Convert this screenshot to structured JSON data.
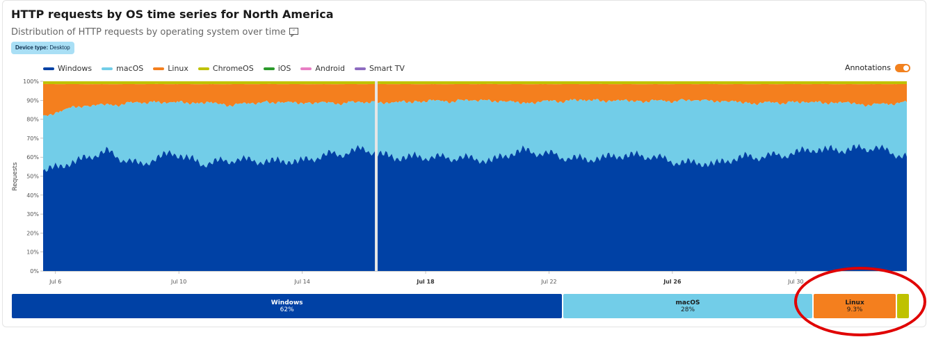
{
  "header": {
    "title": "HTTP requests by OS time series for North America",
    "subtitle": "Distribution of HTTP requests by operating system over time",
    "filter_badge": {
      "key": "Device type:",
      "value": "Desktop"
    }
  },
  "annotations": {
    "label": "Annotations",
    "enabled": true
  },
  "colors": {
    "Windows": "#0041a5",
    "macOS": "#72cde8",
    "Linux": "#f47f1e",
    "ChromeOS": "#bfc200",
    "iOS": "#2b9a2b",
    "Android": "#e87ec4",
    "Smart TV": "#8d6bc0"
  },
  "chart_data": {
    "type": "area",
    "stacked": true,
    "normalized": true,
    "title": "HTTP requests by OS time series for North America",
    "ylabel": "Requests",
    "ylim": [
      0,
      100
    ],
    "yticks": [
      "0%",
      "10%",
      "20%",
      "30%",
      "40%",
      "50%",
      "60%",
      "70%",
      "80%",
      "90%",
      "100%"
    ],
    "xticks": [
      {
        "label": "Jul 6",
        "day": 6,
        "bold": false
      },
      {
        "label": "Jul 10",
        "day": 10,
        "bold": false
      },
      {
        "label": "Jul 14",
        "day": 14,
        "bold": false
      },
      {
        "label": "Jul 18",
        "day": 18,
        "bold": true
      },
      {
        "label": "Jul 22",
        "day": 22,
        "bold": false
      },
      {
        "label": "Jul 26",
        "day": 26,
        "bold": true
      },
      {
        "label": "Jul 30",
        "day": 30,
        "bold": false
      }
    ],
    "x_range_days": [
      5.6,
      33.6
    ],
    "gap_day": 16.4,
    "legend": [
      "Windows",
      "macOS",
      "Linux",
      "ChromeOS",
      "iOS",
      "Android",
      "Smart TV"
    ],
    "legend_position": "top-left",
    "series": [
      {
        "name": "Windows",
        "approx_share_percent": [
          53,
          57,
          63,
          57,
          62,
          56,
          60,
          58,
          57,
          62,
          65,
          59,
          60,
          61,
          58,
          63,
          62,
          59,
          60,
          61,
          58,
          56,
          60,
          62,
          64,
          63,
          66,
          61
        ]
      },
      {
        "name": "macOS",
        "approx_share_percent": [
          28,
          30,
          25,
          32,
          27,
          33,
          28,
          31,
          32,
          27,
          24,
          30,
          30,
          29,
          32,
          26,
          28,
          31,
          30,
          29,
          32,
          34,
          29,
          27,
          25,
          26,
          22,
          28
        ]
      },
      {
        "name": "Linux",
        "approx_share_percent": [
          17,
          11,
          10,
          9,
          9,
          9,
          10,
          9,
          9,
          9,
          9,
          9,
          8,
          8,
          8,
          9,
          8,
          8,
          8,
          8,
          8,
          8,
          9,
          9,
          9,
          9,
          10,
          9
        ]
      },
      {
        "name": "ChromeOS",
        "approx_share_percent": [
          1.5,
          1.5,
          1.5,
          1.5,
          1.5,
          1.5,
          1.5,
          1.5,
          1.5,
          1.5,
          1.5,
          1.5,
          1.5,
          1.5,
          1.5,
          1.5,
          1.5,
          1.5,
          1.5,
          1.5,
          1.5,
          1.5,
          1.5,
          1.5,
          1.5,
          1.5,
          1.5,
          1.5
        ]
      }
    ],
    "summary": [
      {
        "name": "Windows",
        "label": "62%",
        "share": 62
      },
      {
        "name": "macOS",
        "label": "28%",
        "share": 28
      },
      {
        "name": "Linux",
        "label": "9.3%",
        "share": 9.3
      },
      {
        "name": "ChromeOS",
        "label": "",
        "share": 1.3
      }
    ]
  }
}
